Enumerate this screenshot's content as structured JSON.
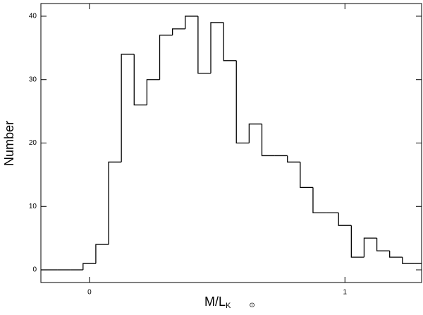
{
  "chart_data": {
    "type": "histogram",
    "xlabel": "M/L",
    "xlabel_subscript": "K",
    "xlabel_symbol": "⊙",
    "ylabel": "Number",
    "bins": [
      -0.225,
      -0.175,
      -0.125,
      -0.075,
      -0.025,
      0.025,
      0.075,
      0.125,
      0.175,
      0.225,
      0.275,
      0.325,
      0.375,
      0.425,
      0.475,
      0.525,
      0.575,
      0.625,
      0.675,
      0.725,
      0.775,
      0.825,
      0.875,
      0.925,
      0.975,
      1.025,
      1.075,
      1.125,
      1.175,
      1.225,
      1.275,
      1.325
    ],
    "counts": [
      0,
      0,
      0,
      0,
      1,
      4,
      17,
      34,
      26,
      30,
      37,
      38,
      40,
      31,
      39,
      33,
      20,
      23,
      18,
      18,
      17,
      13,
      9,
      9,
      7,
      2,
      5,
      3,
      2,
      1,
      1
    ],
    "color": "#000000",
    "xlim": [
      -0.19,
      1.3
    ],
    "xticks": [
      0,
      1
    ],
    "ylim": [
      -2,
      42
    ],
    "yticks": [
      0,
      10,
      20,
      30,
      40
    ],
    "grid": false
  }
}
